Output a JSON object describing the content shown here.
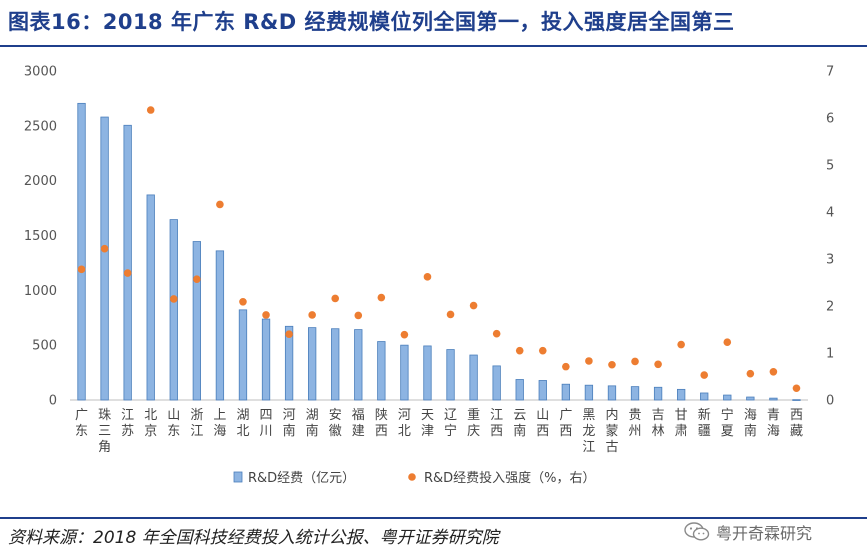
{
  "header": {
    "title": "图表16：2018 年广东 R&D 经费规模位列全国第一，投入强度居全国第三"
  },
  "footer": {
    "source": "资料来源：2018 年全国科技经费投入统计公报、粤开证券研究院",
    "watermark": "粤开奇霖研究"
  },
  "chart_data": {
    "type": "bar",
    "categories": [
      "广东",
      "珠三角",
      "江苏",
      "北京",
      "山东",
      "浙江",
      "上海",
      "湖北",
      "四川",
      "河南",
      "湖南",
      "安徽",
      "福建",
      "陕西",
      "河北",
      "天津",
      "辽宁",
      "重庆",
      "江西",
      "云南",
      "山西",
      "广西",
      "黑龙江",
      "内蒙古",
      "贵州",
      "吉林",
      "甘肃",
      "新疆",
      "宁夏",
      "海南",
      "青海",
      "西藏"
    ],
    "category_lines": [
      [
        "广",
        "东"
      ],
      [
        "珠",
        "三",
        "角"
      ],
      [
        "江",
        "苏"
      ],
      [
        "北",
        "京"
      ],
      [
        "山",
        "东"
      ],
      [
        "浙",
        "江"
      ],
      [
        "上",
        "海"
      ],
      [
        "湖",
        "北"
      ],
      [
        "四",
        "川"
      ],
      [
        "河",
        "南"
      ],
      [
        "湖",
        "南"
      ],
      [
        "安",
        "徽"
      ],
      [
        "福",
        "建"
      ],
      [
        "陕",
        "西"
      ],
      [
        "河",
        "北"
      ],
      [
        "天",
        "津"
      ],
      [
        "辽",
        "宁"
      ],
      [
        "重",
        "庆"
      ],
      [
        "江",
        "西"
      ],
      [
        "云",
        "南"
      ],
      [
        "山",
        "西"
      ],
      [
        "广",
        "西"
      ],
      [
        "黑",
        "龙",
        "江"
      ],
      [
        "内",
        "蒙",
        "古"
      ],
      [
        "贵",
        "州"
      ],
      [
        "吉",
        "林"
      ],
      [
        "甘",
        "肃"
      ],
      [
        "新",
        "疆"
      ],
      [
        "宁",
        "夏"
      ],
      [
        "海",
        "南"
      ],
      [
        "青",
        "海"
      ],
      [
        "西",
        "藏"
      ]
    ],
    "series": [
      {
        "name": "R&D经费（亿元）",
        "type": "bar",
        "axis": "left",
        "color": "#8db4e2",
        "border": "#4a7ebb",
        "values": [
          2705,
          2580,
          2505,
          1870,
          1645,
          1445,
          1360,
          822,
          738,
          672,
          660,
          650,
          642,
          533,
          500,
          493,
          460,
          410,
          311,
          187,
          178,
          144,
          135,
          129,
          122,
          116,
          97,
          64,
          45,
          27,
          17,
          3
        ]
      },
      {
        "name": "R&D经费投入强度（%，右）",
        "type": "scatter",
        "axis": "right",
        "color": "#ed7d31",
        "values": [
          2.78,
          3.22,
          2.7,
          6.17,
          2.15,
          2.57,
          4.16,
          2.09,
          1.81,
          1.4,
          1.81,
          2.16,
          1.8,
          2.18,
          1.39,
          2.62,
          1.82,
          2.01,
          1.41,
          1.05,
          1.05,
          0.71,
          0.83,
          0.75,
          0.82,
          0.76,
          1.18,
          0.53,
          1.23,
          0.56,
          0.6,
          0.25
        ]
      }
    ],
    "y_left": {
      "min": 0,
      "max": 3000,
      "ticks": [
        0,
        500,
        1000,
        1500,
        2000,
        2500,
        3000
      ]
    },
    "y_right": {
      "min": 0,
      "max": 7,
      "ticks": [
        0,
        1,
        2,
        3,
        4,
        5,
        6,
        7
      ]
    },
    "grid": false,
    "legend": "bottom"
  }
}
